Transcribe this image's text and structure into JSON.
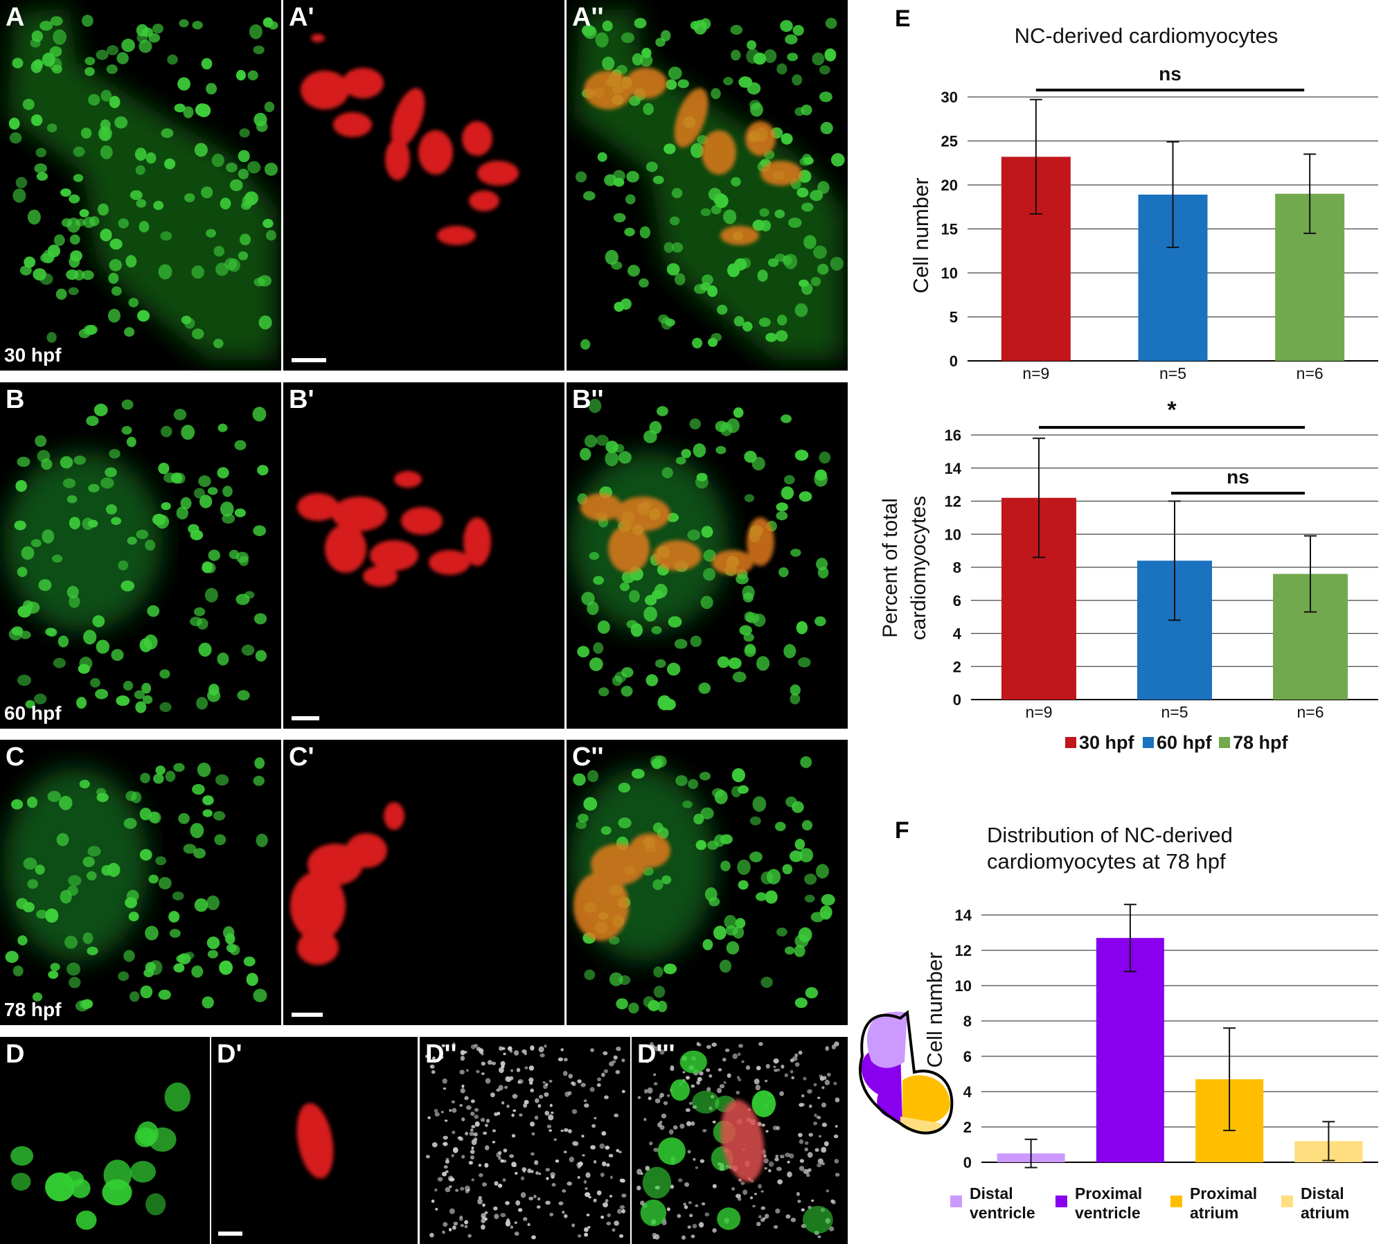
{
  "panels": {
    "row_a": {
      "labels": [
        "A",
        "A'",
        "A''"
      ],
      "time": "30 hpf"
    },
    "row_b": {
      "labels": [
        "B",
        "B'",
        "B''"
      ],
      "time": "60 hpf"
    },
    "row_c": {
      "labels": [
        "C",
        "C'",
        "C''"
      ],
      "time": "78 hpf"
    },
    "row_d": {
      "labels": [
        "D",
        "D'",
        "D''",
        "D'''"
      ]
    }
  },
  "figure_labels": {
    "e": "E",
    "f": "F"
  },
  "chart_data": [
    {
      "id": "E-top",
      "type": "bar",
      "title": "NC-derived cardiomyocytes",
      "ylabel": "Cell number",
      "xlabel": "",
      "categories": [
        "n=9",
        "n=5",
        "n=6"
      ],
      "series_names": [
        "30 hpf",
        "60 hpf",
        "78 hpf"
      ],
      "values": [
        23.2,
        18.9,
        19.0
      ],
      "errors": [
        6.5,
        6.0,
        4.5
      ],
      "colors": [
        "#c0161c",
        "#1b72bf",
        "#72a94e"
      ],
      "ylim": [
        0,
        30
      ],
      "yticks": [
        0,
        5,
        10,
        15,
        20,
        25,
        30
      ],
      "grid": true,
      "significance": [
        {
          "from": 0,
          "to": 2,
          "label": "ns"
        }
      ]
    },
    {
      "id": "E-bottom",
      "type": "bar",
      "ylabel_lines": [
        "Percent of total",
        "cardiomyocytes"
      ],
      "xlabel": "",
      "categories": [
        "n=9",
        "n=5",
        "n=6"
      ],
      "values": [
        12.2,
        8.4,
        7.6
      ],
      "errors": [
        3.6,
        3.6,
        2.3
      ],
      "colors": [
        "#c0161c",
        "#1b72bf",
        "#72a94e"
      ],
      "ylim": [
        0,
        16
      ],
      "yticks": [
        0,
        2,
        4,
        6,
        8,
        10,
        12,
        14,
        16
      ],
      "grid": true,
      "significance": [
        {
          "from": 0,
          "to": 2,
          "label": "*"
        },
        {
          "from": 1,
          "to": 2,
          "label": "ns"
        }
      ],
      "legend": {
        "placement": "bottom",
        "entries": [
          {
            "label": "30 hpf",
            "color": "#c0161c"
          },
          {
            "label": "60 hpf",
            "color": "#1b72bf"
          },
          {
            "label": "78 hpf",
            "color": "#72a94e"
          }
        ]
      }
    },
    {
      "id": "F",
      "type": "bar",
      "title_lines": [
        "Distribution of NC-derived",
        "cardiomyocytes at 78 hpf"
      ],
      "ylabel": "Cell number",
      "xlabel": "",
      "categories": [
        "Distal ventricle",
        "Proximal ventricle",
        "Proximal atrium",
        "Distal atrium"
      ],
      "values": [
        0.5,
        12.7,
        4.7,
        1.2
      ],
      "errors": [
        0.8,
        1.9,
        2.9,
        1.1
      ],
      "colors": [
        "#cc99ff",
        "#8800ee",
        "#ffbf00",
        "#ffde80"
      ],
      "ylim": [
        0,
        14
      ],
      "yticks": [
        0,
        2,
        4,
        6,
        8,
        10,
        12,
        14
      ],
      "grid": true,
      "legend": {
        "placement": "bottom",
        "entries": [
          {
            "label_lines": [
              "Distal",
              "ventricle"
            ],
            "color": "#cc99ff"
          },
          {
            "label_lines": [
              "Proximal",
              "ventricle"
            ],
            "color": "#8800ee"
          },
          {
            "label_lines": [
              "Proximal",
              "atrium"
            ],
            "color": "#ffbf00"
          },
          {
            "label_lines": [
              "Distal",
              "atrium"
            ],
            "color": "#ffde80"
          }
        ]
      }
    }
  ]
}
